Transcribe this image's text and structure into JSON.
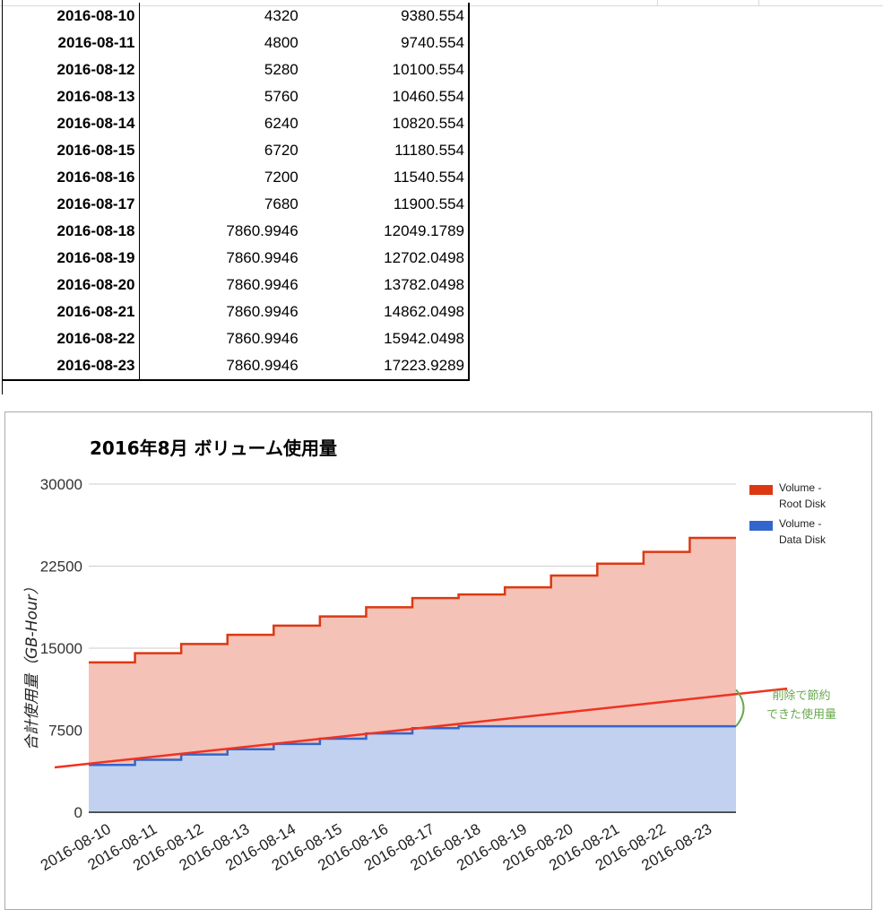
{
  "table": {
    "rows": [
      [
        "2016-08-10",
        "4320",
        "9380.554"
      ],
      [
        "2016-08-11",
        "4800",
        "9740.554"
      ],
      [
        "2016-08-12",
        "5280",
        "10100.554"
      ],
      [
        "2016-08-13",
        "5760",
        "10460.554"
      ],
      [
        "2016-08-14",
        "6240",
        "10820.554"
      ],
      [
        "2016-08-15",
        "6720",
        "11180.554"
      ],
      [
        "2016-08-16",
        "7200",
        "11540.554"
      ],
      [
        "2016-08-17",
        "7680",
        "11900.554"
      ],
      [
        "2016-08-18",
        "7860.9946",
        "12049.1789"
      ],
      [
        "2016-08-19",
        "7860.9946",
        "12702.0498"
      ],
      [
        "2016-08-20",
        "7860.9946",
        "13782.0498"
      ],
      [
        "2016-08-21",
        "7860.9946",
        "14862.0498"
      ],
      [
        "2016-08-22",
        "7860.9946",
        "15942.0498"
      ],
      [
        "2016-08-23",
        "7860.9946",
        "17223.9289"
      ]
    ]
  },
  "chart_data": {
    "type": "area",
    "stacked": true,
    "stepped": true,
    "title": "2016年8月 ボリューム使用量",
    "xlabel": "",
    "ylabel": "合計使用量（GB-Hour）",
    "categories": [
      "2016-08-10",
      "2016-08-11",
      "2016-08-12",
      "2016-08-13",
      "2016-08-14",
      "2016-08-15",
      "2016-08-16",
      "2016-08-17",
      "2016-08-18",
      "2016-08-19",
      "2016-08-20",
      "2016-08-21",
      "2016-08-22",
      "2016-08-23"
    ],
    "yticks": [
      "0",
      "7500",
      "15000",
      "22500",
      "30000"
    ],
    "ylim": [
      0,
      30000
    ],
    "grid": true,
    "legend_position": "right",
    "series": [
      {
        "name": "Volume - Data Disk",
        "color": "#3366cc",
        "fill": "#c2d1ef",
        "values": [
          4320,
          4800,
          5280,
          5760,
          6240,
          6720,
          7200,
          7680,
          7860.9946,
          7860.9946,
          7860.9946,
          7860.9946,
          7860.9946,
          7860.9946
        ]
      },
      {
        "name": "Volume - Root Disk",
        "color": "#dc3912",
        "fill": "#f4c2b7",
        "values": [
          9380.554,
          9740.554,
          10100.554,
          10460.554,
          10820.554,
          11180.554,
          11540.554,
          11900.554,
          12049.1789,
          12702.0498,
          13782.0498,
          14862.0498,
          15942.0498,
          17223.9289
        ]
      }
    ],
    "legend": [
      {
        "label_line1": "Volume -",
        "label_line2": "Root Disk",
        "color": "#dc3912"
      },
      {
        "label_line1": "Volume -",
        "label_line2": "Data Disk",
        "color": "#3366cc"
      }
    ],
    "annotation": {
      "line1": "削除で節約",
      "line2": "できた使用量",
      "color": "#6aa84f",
      "trend_color": "#ee3322",
      "trend_start": 4100,
      "trend_end": 11300
    }
  }
}
